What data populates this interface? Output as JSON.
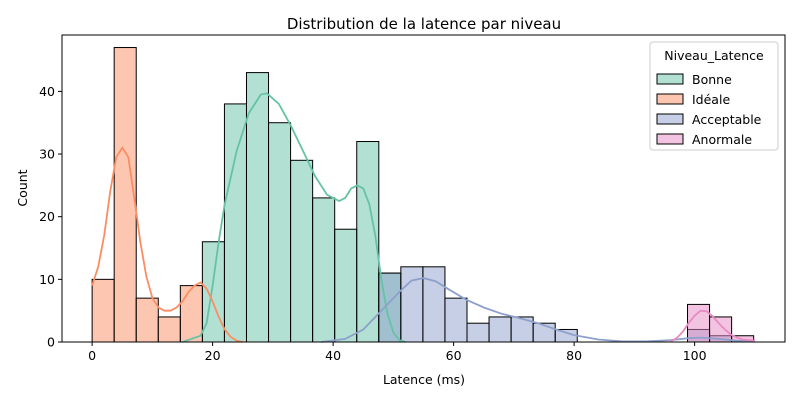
{
  "chart_data": {
    "type": "bar",
    "title": "Distribution de la latence par niveau",
    "xlabel": "Latence (ms)",
    "ylabel": "Count",
    "xlim": [
      -5,
      115
    ],
    "ylim": [
      0,
      49
    ],
    "xticks": [
      0,
      20,
      40,
      60,
      80,
      100
    ],
    "yticks": [
      0,
      10,
      20,
      30,
      40
    ],
    "grid": false,
    "legend": {
      "title": "Niveau_Latence",
      "placement": "top-right"
    },
    "bin_width": 3.66,
    "bins": [
      0.0,
      3.66,
      7.32,
      10.98,
      14.64,
      18.3,
      21.96,
      25.62,
      29.28,
      32.94,
      36.6,
      40.26,
      43.92,
      47.58,
      51.24,
      54.9,
      58.56,
      62.22,
      65.88,
      69.54,
      73.2,
      76.86,
      80.52,
      84.18,
      87.84,
      91.5,
      95.16,
      98.82,
      102.48,
      106.14
    ],
    "series": [
      {
        "name": "Bonne",
        "color": "#66c2a5",
        "counts": [
          0,
          0,
          0,
          0,
          0,
          16,
          38,
          43,
          35,
          29,
          23,
          18,
          32,
          11,
          0,
          0,
          0,
          0,
          0,
          0,
          0,
          0,
          0,
          0,
          0,
          0,
          0,
          0,
          0,
          0
        ],
        "kde": [
          [
            15,
            0
          ],
          [
            18,
            1
          ],
          [
            19,
            3
          ],
          [
            20,
            9
          ],
          [
            21,
            16
          ],
          [
            22,
            22
          ],
          [
            24,
            30.5
          ],
          [
            26,
            36.5
          ],
          [
            28,
            39.5
          ],
          [
            29,
            39.7
          ],
          [
            31,
            38
          ],
          [
            33,
            34.5
          ],
          [
            35,
            30.5
          ],
          [
            37,
            26.5
          ],
          [
            39,
            23.5
          ],
          [
            41,
            22.5
          ],
          [
            42,
            23
          ],
          [
            43,
            24.5
          ],
          [
            44,
            25
          ],
          [
            45,
            24.5
          ],
          [
            46,
            22
          ],
          [
            47,
            17
          ],
          [
            48,
            10
          ],
          [
            49,
            4.5
          ],
          [
            50,
            1.5
          ],
          [
            51,
            0.3
          ],
          [
            52,
            0
          ]
        ]
      },
      {
        "name": "Idéale",
        "color": "#fc8d62",
        "counts": [
          10,
          47,
          7,
          4,
          9,
          0,
          0,
          0,
          0,
          0,
          0,
          0,
          0,
          0,
          0,
          0,
          0,
          0,
          0,
          0,
          0,
          0,
          0,
          0,
          0,
          0,
          0,
          0,
          0,
          0
        ],
        "kde": [
          [
            0,
            9
          ],
          [
            1,
            12
          ],
          [
            2,
            17
          ],
          [
            3,
            24
          ],
          [
            4,
            29.5
          ],
          [
            5,
            31
          ],
          [
            6,
            29.5
          ],
          [
            7,
            23
          ],
          [
            8,
            16
          ],
          [
            9,
            10.5
          ],
          [
            10,
            7
          ],
          [
            11,
            5.5
          ],
          [
            12,
            5
          ],
          [
            13,
            5
          ],
          [
            14,
            5.5
          ],
          [
            15,
            6.5
          ],
          [
            16,
            8
          ],
          [
            17,
            9
          ],
          [
            18,
            9.5
          ],
          [
            19,
            8.5
          ],
          [
            20,
            6.5
          ],
          [
            21,
            4
          ],
          [
            22,
            2
          ],
          [
            23,
            0.8
          ],
          [
            24,
            0.2
          ],
          [
            25,
            0
          ]
        ]
      },
      {
        "name": "Acceptable",
        "color": "#8da0cb",
        "counts": [
          0,
          0,
          0,
          0,
          0,
          0,
          0,
          0,
          0,
          0,
          0,
          0,
          0,
          11,
          12,
          12,
          7,
          3,
          4,
          4,
          3,
          2,
          0,
          0,
          0,
          0,
          0,
          2,
          1,
          0
        ],
        "kde": [
          [
            38,
            0
          ],
          [
            42,
            0.5
          ],
          [
            45,
            2
          ],
          [
            48,
            5
          ],
          [
            51,
            8
          ],
          [
            53,
            9.8
          ],
          [
            55,
            10.2
          ],
          [
            57,
            9.7
          ],
          [
            59,
            8.5
          ],
          [
            62,
            6.8
          ],
          [
            65,
            5.5
          ],
          [
            68,
            4.5
          ],
          [
            71,
            3.8
          ],
          [
            74,
            3
          ],
          [
            77,
            2
          ],
          [
            80,
            1.1
          ],
          [
            84,
            0.4
          ],
          [
            88,
            0.1
          ],
          [
            92,
            0.1
          ],
          [
            96,
            0.3
          ],
          [
            99,
            0.6
          ],
          [
            101,
            0.7
          ],
          [
            104,
            0.5
          ],
          [
            107,
            0.2
          ],
          [
            110,
            0.05
          ]
        ]
      },
      {
        "name": "Anormale",
        "color": "#e78ac3",
        "counts": [
          0,
          0,
          0,
          0,
          0,
          0,
          0,
          0,
          0,
          0,
          0,
          0,
          0,
          0,
          0,
          0,
          0,
          0,
          0,
          0,
          0,
          0,
          0,
          0,
          0,
          0,
          0,
          6,
          4,
          1
        ],
        "kde": [
          [
            96,
            0.1
          ],
          [
            97,
            0.6
          ],
          [
            98,
            1.6
          ],
          [
            99,
            3
          ],
          [
            100,
            4.2
          ],
          [
            101,
            5
          ],
          [
            102,
            4.9
          ],
          [
            103,
            4.1
          ],
          [
            104,
            3
          ],
          [
            105,
            2
          ],
          [
            106,
            1.2
          ],
          [
            107,
            0.7
          ],
          [
            108,
            0.4
          ],
          [
            110,
            0.2
          ]
        ]
      }
    ]
  }
}
